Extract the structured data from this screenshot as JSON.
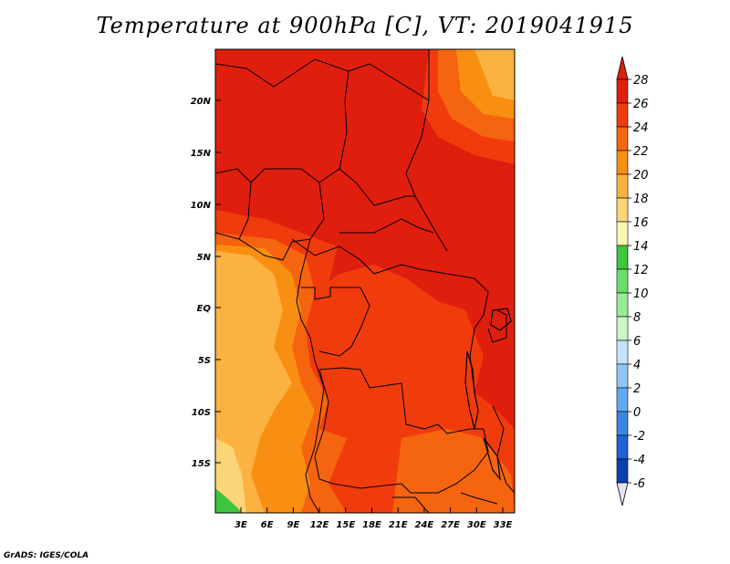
{
  "title": "Temperature at 900hPa [C], VT: 2019041915",
  "credit": "GrADS: IGES/COLA",
  "axes": {
    "lat_labels": [
      "20N",
      "15N",
      "10N",
      "5N",
      "EQ",
      "5S",
      "10S",
      "15S"
    ],
    "lon_labels": [
      "3E",
      "6E",
      "9E",
      "12E",
      "15E",
      "18E",
      "21E",
      "24E",
      "27E",
      "30E",
      "33E"
    ]
  },
  "colorbar": {
    "levels": [
      28,
      26,
      24,
      22,
      20,
      18,
      16,
      14,
      12,
      10,
      8,
      6,
      4,
      2,
      0,
      -2,
      -4,
      -6
    ],
    "labels": [
      "28",
      "26",
      "24",
      "22",
      "20",
      "18",
      "16",
      "14",
      "12",
      "10",
      "8",
      "6",
      "4",
      "2",
      "0",
      "-2",
      "-4",
      "-6"
    ],
    "colors": [
      "#e01e0e",
      "#f03c0c",
      "#f5640e",
      "#f98f12",
      "#fbb240",
      "#fcd579",
      "#fdf5b4",
      "#3ec63e",
      "#6bdc6b",
      "#98ec98",
      "#c8f7c8",
      "#c2e4fb",
      "#8ec7f5",
      "#62a8ee",
      "#3b86e4",
      "#1f63d4",
      "#0d3fae",
      "#08137a"
    ],
    "top_color": "#e01e0e",
    "bottom_color": "#e4e4f8"
  },
  "chart_data": {
    "type": "heatmap",
    "title": "Temperature at 900hPa [C], VT: 2019041915",
    "variable": "Temperature at 900hPa",
    "units": "C",
    "valid_time": "2019041915",
    "lon_range": [
      0,
      34
    ],
    "lat_range": [
      -20,
      24
    ],
    "palette": {
      "28plus": "#e01e0e",
      "26": "#f03c0c",
      "24": "#f5640e",
      "22": "#f98f12",
      "20": "#fbb240",
      "18": "#fcd579",
      "16": "#fdf5b4",
      "14": "#3ec63e"
    }
  }
}
